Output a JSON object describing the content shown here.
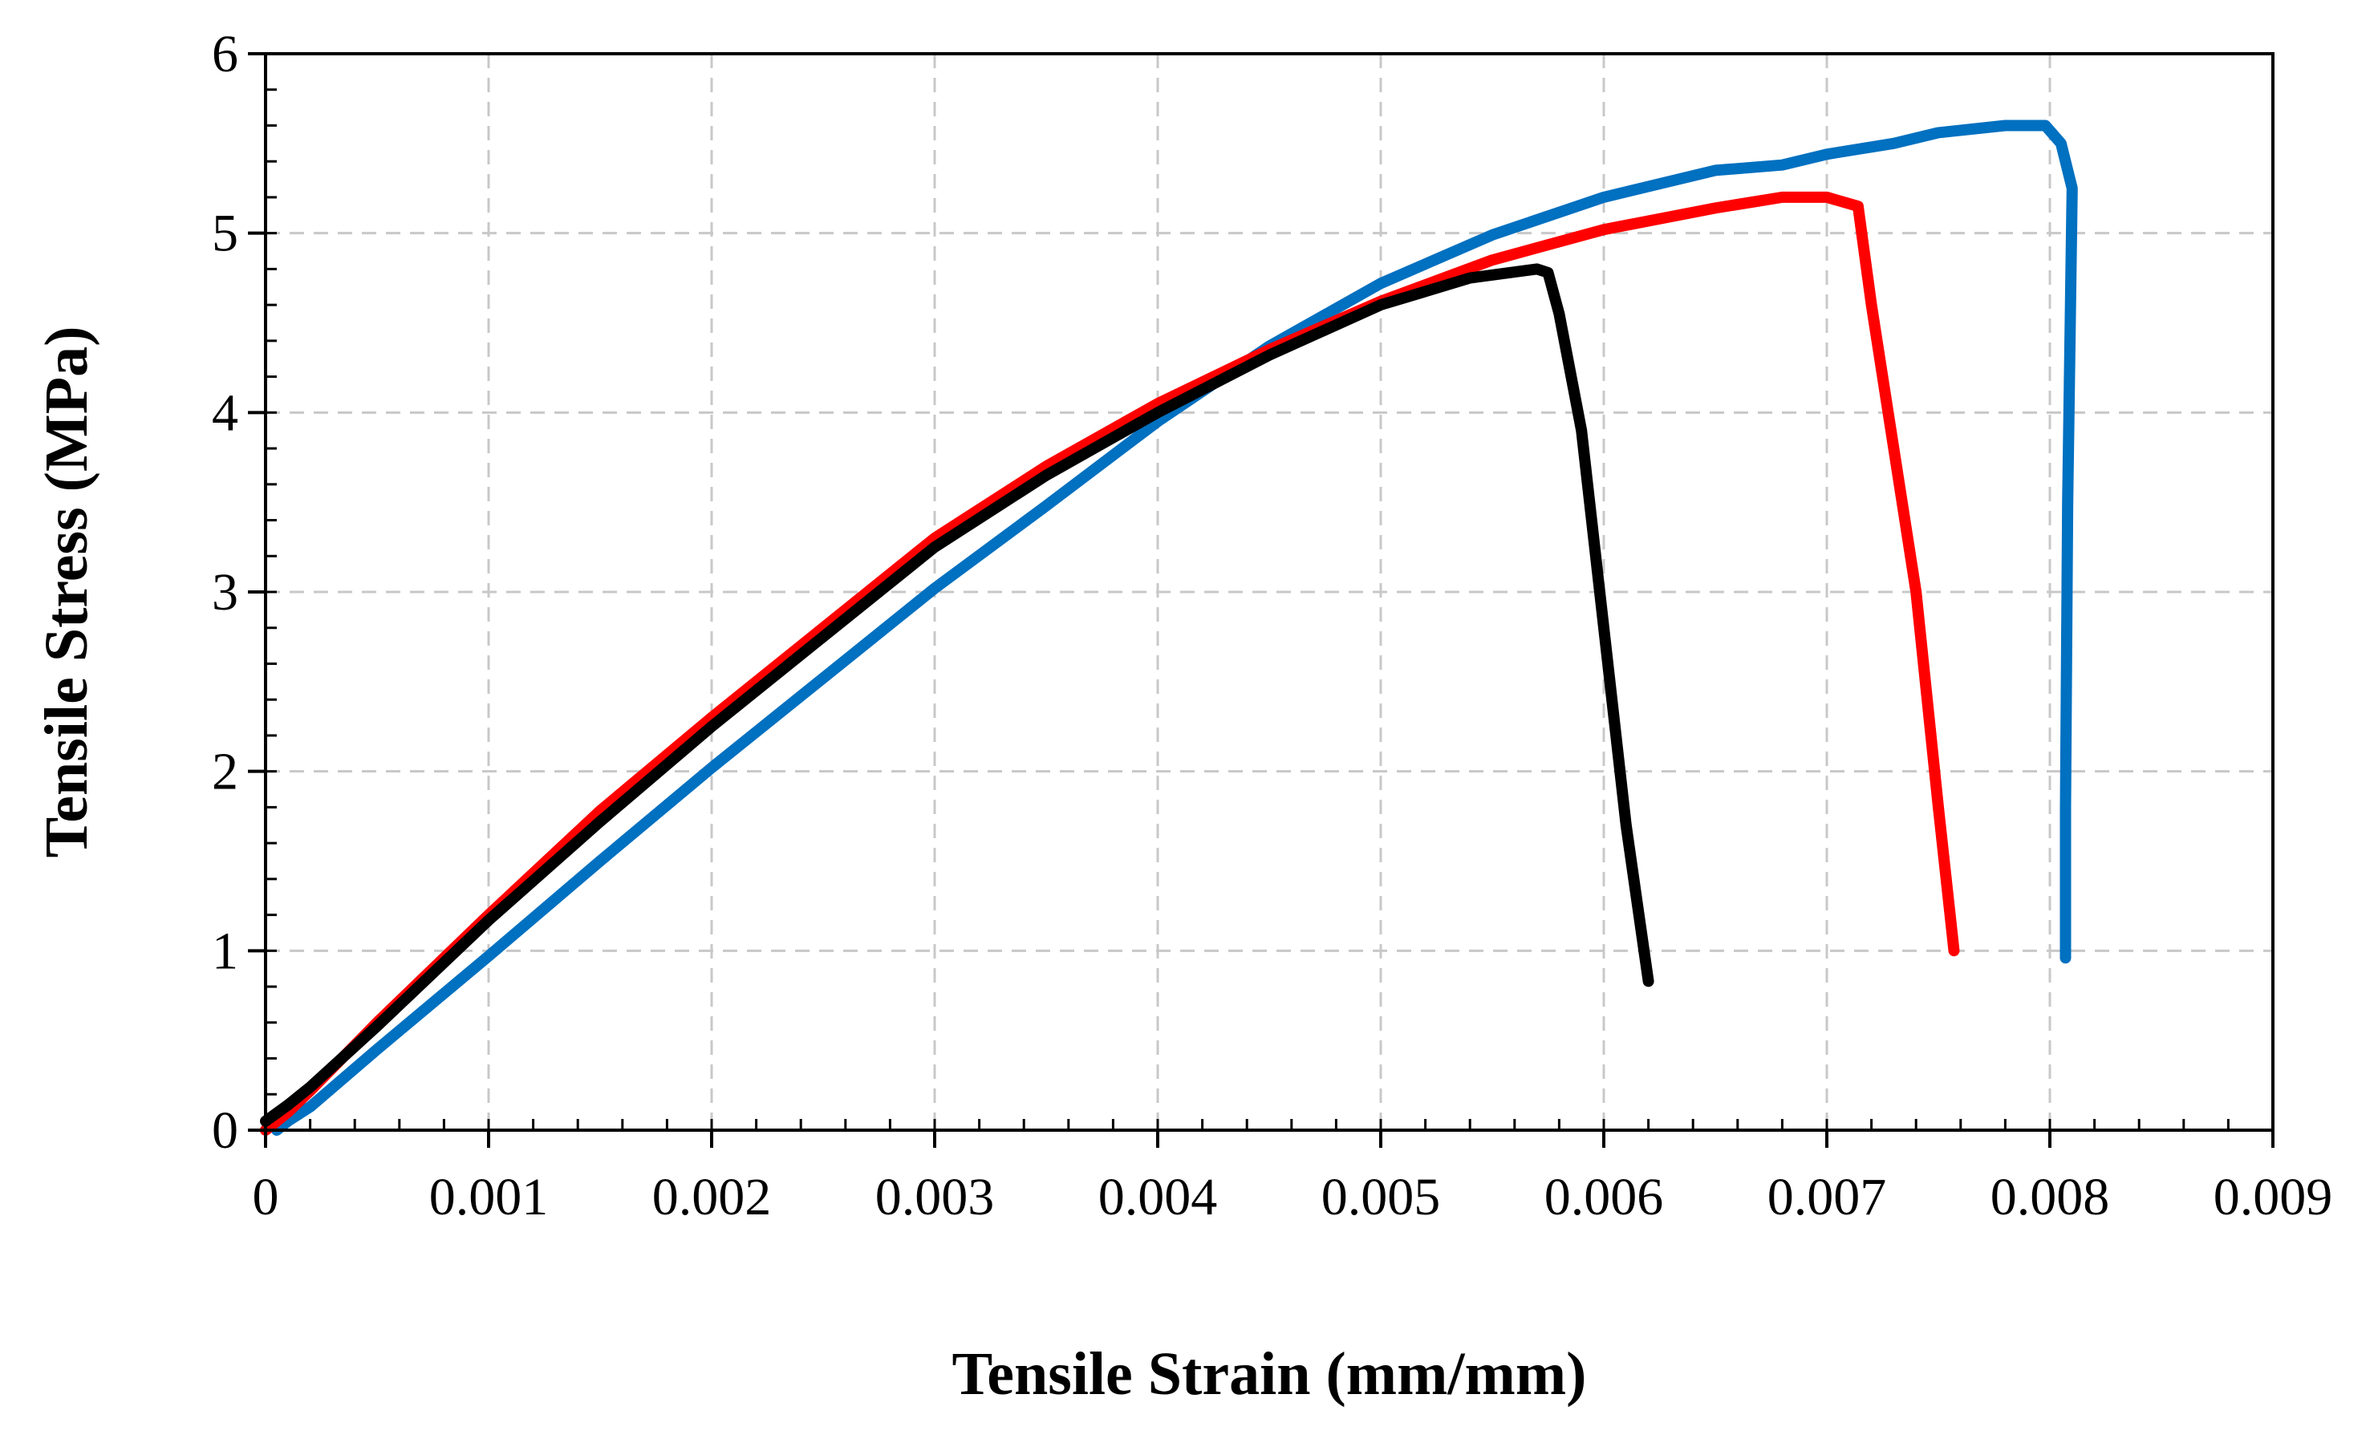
{
  "chart_data": {
    "type": "line",
    "title": "",
    "xlabel": "Tensile Strain (mm/mm)",
    "ylabel": "Tensile Stress (MPa)",
    "xlim": [
      0,
      0.009
    ],
    "ylim": [
      0,
      6
    ],
    "xticks": [
      0,
      0.001,
      0.002,
      0.003,
      0.004,
      0.005,
      0.006,
      0.007,
      0.008,
      0.009
    ],
    "yticks": [
      0,
      1,
      2,
      3,
      4,
      5,
      6
    ],
    "xtick_labels": [
      "0",
      "0.001",
      "0.002",
      "0.003",
      "0.004",
      "0.005",
      "0.006",
      "0.007",
      "0.008",
      "0.009"
    ],
    "ytick_labels": [
      "0",
      "1",
      "2",
      "3",
      "4",
      "5",
      "6"
    ],
    "grid": true,
    "legend": "none",
    "series": [
      {
        "name": "blue",
        "color": "#0070C0",
        "points": [
          [
            5e-05,
            0
          ],
          [
            0.0001,
            0.05
          ],
          [
            0.0002,
            0.13
          ],
          [
            0.0005,
            0.45
          ],
          [
            0.001,
            0.97
          ],
          [
            0.0015,
            1.5
          ],
          [
            0.002,
            2.02
          ],
          [
            0.0025,
            2.52
          ],
          [
            0.003,
            3.02
          ],
          [
            0.0035,
            3.48
          ],
          [
            0.004,
            3.95
          ],
          [
            0.0045,
            4.37
          ],
          [
            0.005,
            4.72
          ],
          [
            0.0055,
            4.99
          ],
          [
            0.006,
            5.2
          ],
          [
            0.0065,
            5.35
          ],
          [
            0.0068,
            5.38
          ],
          [
            0.007,
            5.44
          ],
          [
            0.0073,
            5.5
          ],
          [
            0.0075,
            5.56
          ],
          [
            0.0078,
            5.6
          ],
          [
            0.00798,
            5.6
          ],
          [
            0.00805,
            5.5
          ],
          [
            0.0081,
            5.25
          ],
          [
            0.00808,
            3.5
          ],
          [
            0.00807,
            1.8
          ],
          [
            0.00807,
            0.96
          ]
        ]
      },
      {
        "name": "red",
        "color": "#FF0000",
        "points": [
          [
            0,
            0
          ],
          [
            0.0001,
            0.1
          ],
          [
            0.0002,
            0.22
          ],
          [
            0.0005,
            0.6
          ],
          [
            0.001,
            1.2
          ],
          [
            0.0015,
            1.78
          ],
          [
            0.002,
            2.3
          ],
          [
            0.0025,
            2.8
          ],
          [
            0.003,
            3.3
          ],
          [
            0.0035,
            3.7
          ],
          [
            0.004,
            4.05
          ],
          [
            0.0045,
            4.35
          ],
          [
            0.005,
            4.62
          ],
          [
            0.0055,
            4.85
          ],
          [
            0.006,
            5.02
          ],
          [
            0.0065,
            5.14
          ],
          [
            0.0068,
            5.2
          ],
          [
            0.007,
            5.2
          ],
          [
            0.00714,
            5.15
          ],
          [
            0.0072,
            4.6
          ],
          [
            0.0073,
            3.8
          ],
          [
            0.0074,
            3.0
          ],
          [
            0.0075,
            1.8
          ],
          [
            0.00757,
            1.0
          ]
        ]
      },
      {
        "name": "black",
        "color": "#000000",
        "points": [
          [
            0,
            0.05
          ],
          [
            0.0001,
            0.14
          ],
          [
            0.0002,
            0.24
          ],
          [
            0.0005,
            0.58
          ],
          [
            0.001,
            1.17
          ],
          [
            0.0015,
            1.72
          ],
          [
            0.002,
            2.25
          ],
          [
            0.0025,
            2.75
          ],
          [
            0.003,
            3.25
          ],
          [
            0.0035,
            3.65
          ],
          [
            0.004,
            4.0
          ],
          [
            0.0045,
            4.32
          ],
          [
            0.005,
            4.6
          ],
          [
            0.0054,
            4.75
          ],
          [
            0.0057,
            4.8
          ],
          [
            0.00575,
            4.78
          ],
          [
            0.0058,
            4.55
          ],
          [
            0.0059,
            3.9
          ],
          [
            0.006,
            2.8
          ],
          [
            0.0061,
            1.7
          ],
          [
            0.0062,
            0.83
          ]
        ]
      }
    ]
  }
}
